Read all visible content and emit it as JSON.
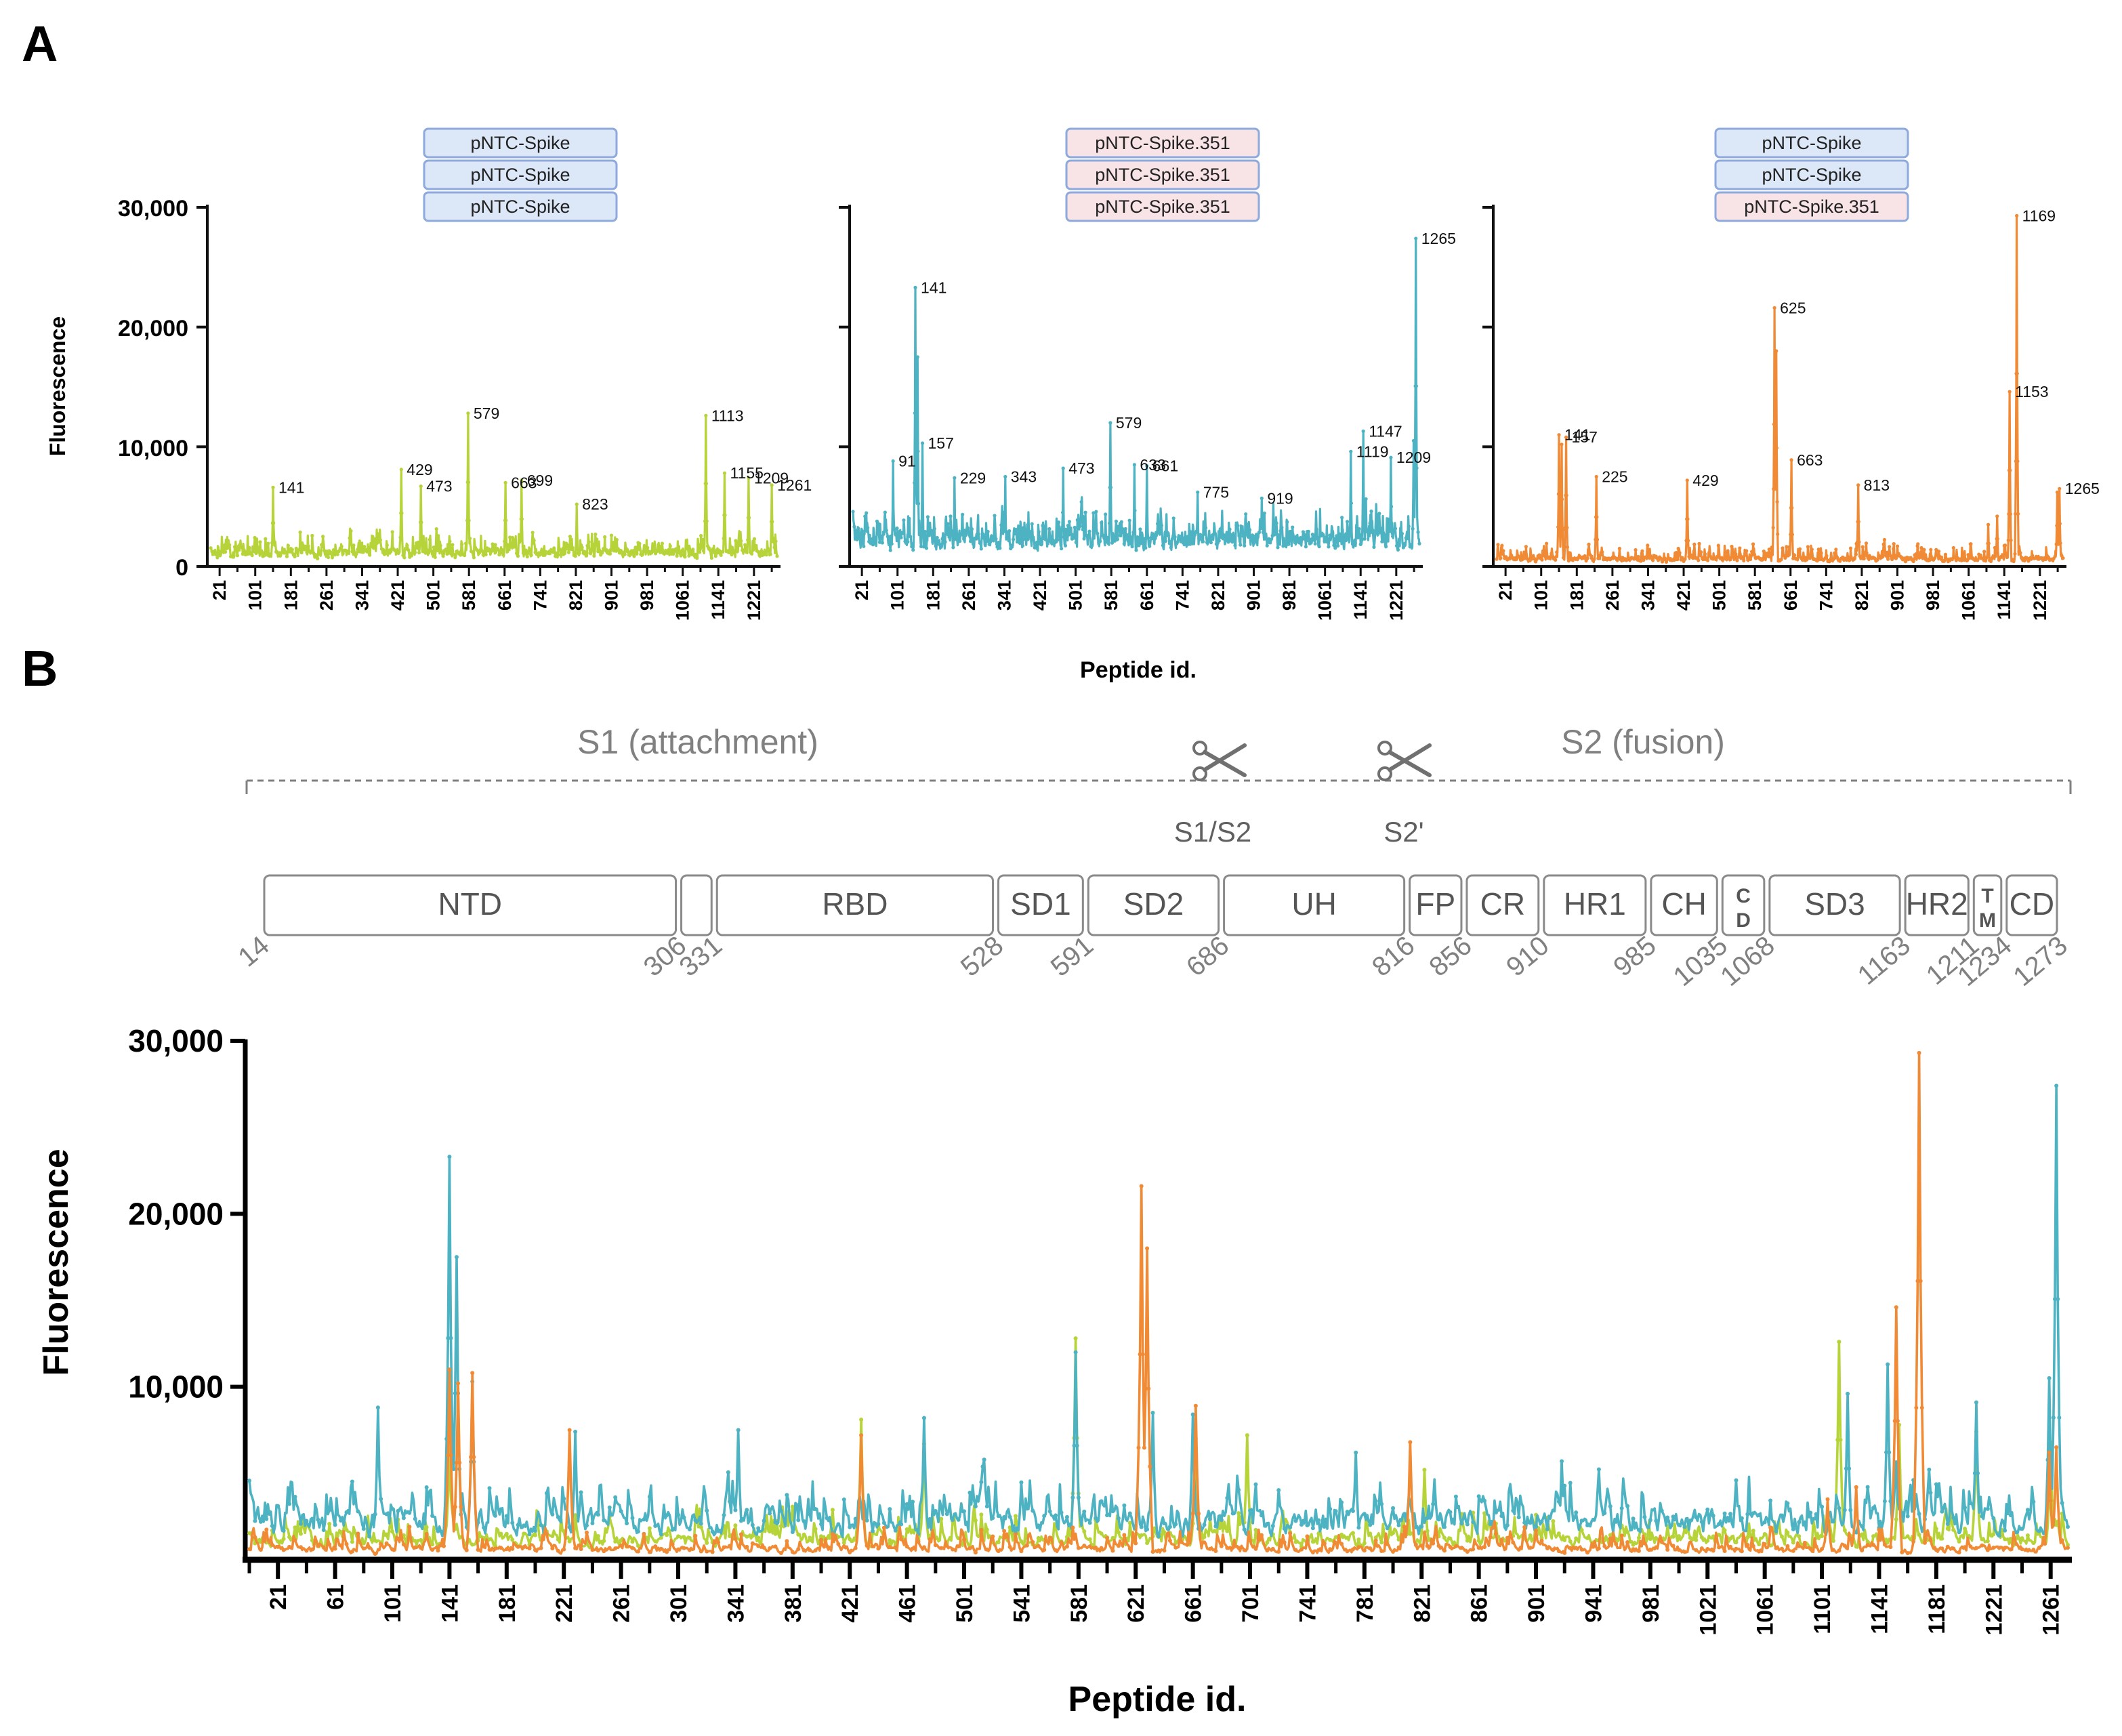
{
  "panel_a_label": "A",
  "panel_b_label": "B",
  "colors": {
    "green": "#b6d43a",
    "teal": "#4db3c2",
    "orange": "#f08a35",
    "box_blue_fill": "#dce7f8",
    "box_blue_stroke": "#8ea9dc",
    "box_pink_fill": "#f8e4e6",
    "box_pink_stroke": "#8ea9dc"
  },
  "domain_map": {
    "s1_label": "S1 (attachment)",
    "s2_label": "S2 (fusion)",
    "s1s2_label": "S1/S2",
    "s2prime_label": "S2'",
    "scissors_icon": "scissors-icon",
    "domains": [
      {
        "label": "NTD",
        "start": 14,
        "end": 306
      },
      {
        "label": "",
        "start": 306,
        "end": 331
      },
      {
        "label": "RBD",
        "start": 331,
        "end": 528
      },
      {
        "label": "SD1",
        "start": 528,
        "end": 591
      },
      {
        "label": "SD2",
        "start": 591,
        "end": 686
      },
      {
        "label": "UH",
        "start": 686,
        "end": 816
      },
      {
        "label": "FP",
        "start": 816,
        "end": 856
      },
      {
        "label": "CR",
        "start": 856,
        "end": 910
      },
      {
        "label": "HR1",
        "start": 910,
        "end": 985
      },
      {
        "label": "CH",
        "start": 985,
        "end": 1035
      },
      {
        "label": "C D",
        "start": 1035,
        "end": 1068
      },
      {
        "label": "SD3",
        "start": 1068,
        "end": 1163
      },
      {
        "label": "HR2",
        "start": 1163,
        "end": 1211
      },
      {
        "label": "T M",
        "start": 1211,
        "end": 1234
      },
      {
        "label": "CD",
        "start": 1234,
        "end": 1273
      }
    ],
    "boundaries": [
      "14",
      "306",
      "331",
      "528",
      "591",
      "686",
      "816",
      "856",
      "910",
      "985",
      "1035",
      "1068",
      "1163",
      "1211",
      "1234",
      "1273"
    ]
  },
  "chart_data": [
    {
      "type": "line",
      "panel": "A-left",
      "legend_boxes": [
        {
          "text": "pNTC-Spike",
          "style": "blue"
        },
        {
          "text": "pNTC-Spike",
          "style": "blue"
        },
        {
          "text": "pNTC-Spike",
          "style": "blue"
        }
      ],
      "ylabel": "Fluorescence",
      "ylim": [
        0,
        30000
      ],
      "yticks": [
        0,
        10000,
        20000,
        30000
      ],
      "ytick_labels": [
        "0",
        "10,000",
        "20,000",
        "30,000"
      ],
      "xlim": [
        1,
        1273
      ],
      "xticks": [
        "21",
        "101",
        "181",
        "261",
        "341",
        "421",
        "501",
        "581",
        "661",
        "741",
        "821",
        "901",
        "981",
        "1061",
        "1141",
        "1221"
      ],
      "color": "green",
      "baseline": 1300,
      "noise": 1700,
      "peaks": [
        [
          141,
          6600
        ],
        [
          429,
          8100
        ],
        [
          473,
          6700
        ],
        [
          579,
          12800
        ],
        [
          663,
          7000
        ],
        [
          699,
          7200
        ],
        [
          823,
          5200
        ],
        [
          1113,
          12600
        ],
        [
          1155,
          7800
        ],
        [
          1209,
          7400
        ],
        [
          1261,
          6800
        ],
        [
          901,
          2600
        ],
        [
          980,
          2200
        ],
        [
          1050,
          2100
        ]
      ],
      "labels": [
        {
          "text": "141",
          "x": 141,
          "y": 6600
        },
        {
          "text": "429",
          "x": 429,
          "y": 8100
        },
        {
          "text": "473",
          "x": 473,
          "y": 6700
        },
        {
          "text": "579",
          "x": 579,
          "y": 12800
        },
        {
          "text": "663",
          "x": 663,
          "y": 7000
        },
        {
          "text": "699",
          "x": 699,
          "y": 7200
        },
        {
          "text": "823",
          "x": 823,
          "y": 5200
        },
        {
          "text": "1113",
          "x": 1113,
          "y": 12600
        },
        {
          "text": "1155",
          "x": 1155,
          "y": 7800
        },
        {
          "text": "1209",
          "x": 1209,
          "y": 7400
        },
        {
          "text": "1261",
          "x": 1261,
          "y": 6800
        }
      ]
    },
    {
      "type": "line",
      "panel": "A-middle",
      "legend_boxes": [
        {
          "text": "pNTC-Spike.351",
          "style": "pink"
        },
        {
          "text": "pNTC-Spike.351",
          "style": "pink"
        },
        {
          "text": "pNTC-Spike.351",
          "style": "pink"
        }
      ],
      "ylim": [
        0,
        30000
      ],
      "yticks": [
        0,
        10000,
        20000,
        30000
      ],
      "xlim": [
        1,
        1273
      ],
      "xticks": [
        "21",
        "101",
        "181",
        "261",
        "341",
        "421",
        "501",
        "581",
        "661",
        "741",
        "821",
        "901",
        "981",
        "1061",
        "1141",
        "1221"
      ],
      "color": "teal",
      "baseline": 2500,
      "noise": 2600,
      "peaks": [
        [
          91,
          8800
        ],
        [
          141,
          23300
        ],
        [
          146,
          17500
        ],
        [
          157,
          10300
        ],
        [
          229,
          7400
        ],
        [
          343,
          7500
        ],
        [
          473,
          8200
        ],
        [
          579,
          12000
        ],
        [
          633,
          8500
        ],
        [
          661,
          8400
        ],
        [
          775,
          6200
        ],
        [
          919,
          5700
        ],
        [
          1119,
          9600
        ],
        [
          1147,
          11300
        ],
        [
          1209,
          9100
        ],
        [
          1265,
          27400
        ],
        [
          1260,
          10500
        ],
        [
          1050,
          4800
        ]
      ],
      "labels": [
        {
          "text": "91",
          "x": 91,
          "y": 8800
        },
        {
          "text": "141",
          "x": 141,
          "y": 23300
        },
        {
          "text": "157",
          "x": 157,
          "y": 10300
        },
        {
          "text": "229",
          "x": 229,
          "y": 7400
        },
        {
          "text": "343",
          "x": 343,
          "y": 7500
        },
        {
          "text": "473",
          "x": 473,
          "y": 8200
        },
        {
          "text": "579",
          "x": 579,
          "y": 12000
        },
        {
          "text": "633",
          "x": 633,
          "y": 8500
        },
        {
          "text": "661",
          "x": 661,
          "y": 8400
        },
        {
          "text": "775",
          "x": 775,
          "y": 6200
        },
        {
          "text": "919",
          "x": 919,
          "y": 5700
        },
        {
          "text": "1119",
          "x": 1119,
          "y": 9600
        },
        {
          "text": "1147",
          "x": 1147,
          "y": 11300
        },
        {
          "text": "1209",
          "x": 1209,
          "y": 9100
        },
        {
          "text": "1265",
          "x": 1265,
          "y": 27400
        }
      ]
    },
    {
      "type": "line",
      "panel": "A-right",
      "legend_boxes": [
        {
          "text": "pNTC-Spike",
          "style": "blue"
        },
        {
          "text": "pNTC-Spike",
          "style": "blue"
        },
        {
          "text": "pNTC-Spike.351",
          "style": "pink"
        }
      ],
      "ylim": [
        0,
        30000
      ],
      "yticks": [
        0,
        10000,
        20000,
        30000
      ],
      "xlim": [
        1,
        1273
      ],
      "xticks": [
        "21",
        "101",
        "181",
        "261",
        "341",
        "421",
        "501",
        "581",
        "661",
        "741",
        "821",
        "901",
        "981",
        "1061",
        "1141",
        "1221"
      ],
      "color": "orange",
      "baseline": 700,
      "noise": 1300,
      "peaks": [
        [
          141,
          11000
        ],
        [
          147,
          10200
        ],
        [
          157,
          10800
        ],
        [
          225,
          7500
        ],
        [
          429,
          7200
        ],
        [
          625,
          21600
        ],
        [
          629,
          18000
        ],
        [
          663,
          8900
        ],
        [
          813,
          6800
        ],
        [
          1153,
          14600
        ],
        [
          1169,
          29300
        ],
        [
          1265,
          6500
        ],
        [
          1260,
          6200
        ],
        [
          1125,
          4200
        ],
        [
          1105,
          3500
        ]
      ],
      "labels": [
        {
          "text": "141",
          "x": 141,
          "y": 11000
        },
        {
          "text": "157",
          "x": 157,
          "y": 10800
        },
        {
          "text": "225",
          "x": 225,
          "y": 7500
        },
        {
          "text": "429",
          "x": 429,
          "y": 7200
        },
        {
          "text": "625",
          "x": 625,
          "y": 21600
        },
        {
          "text": "663",
          "x": 663,
          "y": 8900
        },
        {
          "text": "813",
          "x": 813,
          "y": 6800
        },
        {
          "text": "1153",
          "x": 1153,
          "y": 14600
        },
        {
          "text": "1169",
          "x": 1169,
          "y": 29300
        },
        {
          "text": "1265",
          "x": 1265,
          "y": 6500
        }
      ]
    },
    {
      "type": "line",
      "panel": "B",
      "ylabel": "Fluorescence",
      "xlabel": "Peptide id.",
      "ylim": [
        0,
        30000
      ],
      "yticks": [
        10000,
        20000,
        30000
      ],
      "ytick_labels": [
        "10,000",
        "20,000",
        "30,000"
      ],
      "xlim": [
        1,
        1273
      ],
      "xticks": [
        "21",
        "61",
        "101",
        "141",
        "181",
        "221",
        "261",
        "301",
        "341",
        "381",
        "421",
        "461",
        "501",
        "541",
        "581",
        "621",
        "661",
        "701",
        "741",
        "781",
        "821",
        "861",
        "901",
        "941",
        "981",
        "1021",
        "1061",
        "1101",
        "1141",
        "1181",
        "1221",
        "1261"
      ],
      "series": [
        {
          "name": "pNTC-Spike",
          "color": "green",
          "source_panel": "A-left"
        },
        {
          "name": "pNTC-Spike.351",
          "color": "teal",
          "source_panel": "A-middle"
        },
        {
          "name": "pNTC-Spike / pNTC-Spike.351",
          "color": "orange",
          "source_panel": "A-right"
        }
      ]
    }
  ],
  "panel_a_xlabel": "Peptide id.",
  "panel_a_ytick_labels": [
    "0",
    "10,000",
    "20,000",
    "30,000"
  ]
}
